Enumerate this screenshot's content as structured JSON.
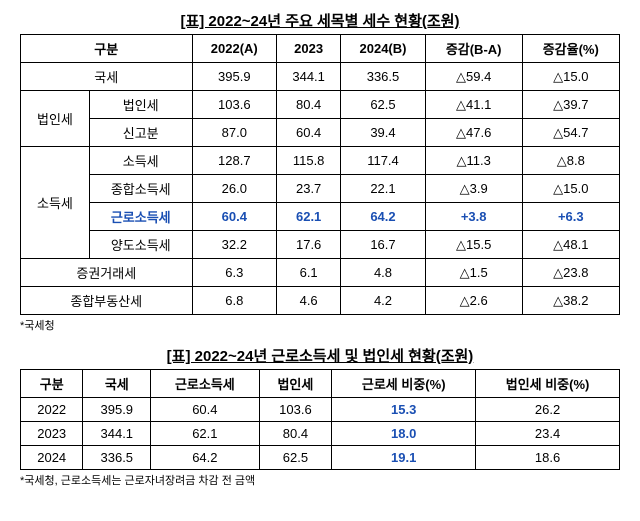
{
  "table1": {
    "title": "[표] 2022~24년 주요 세목별 세수 현황(조원)",
    "headers": {
      "category": "구분",
      "y2022": "2022(A)",
      "y2023": "2023",
      "y2024": "2024(B)",
      "diff": "증감(B-A)",
      "rate": "증감율(%)"
    },
    "rows": {
      "national_tax": {
        "label": "국세",
        "y2022": "395.9",
        "y2023": "344.1",
        "y2024": "336.5",
        "diff": "△59.4",
        "rate": "△15.0"
      },
      "corp_group": "법인세",
      "corp_tax": {
        "label": "법인세",
        "y2022": "103.6",
        "y2023": "80.4",
        "y2024": "62.5",
        "diff": "△41.1",
        "rate": "△39.7"
      },
      "corp_report": {
        "label": "신고분",
        "y2022": "87.0",
        "y2023": "60.4",
        "y2024": "39.4",
        "diff": "△47.6",
        "rate": "△54.7"
      },
      "income_group": "소득세",
      "income_tax": {
        "label": "소득세",
        "y2022": "128.7",
        "y2023": "115.8",
        "y2024": "117.4",
        "diff": "△11.3",
        "rate": "△8.8"
      },
      "comp_income": {
        "label": "종합소득세",
        "y2022": "26.0",
        "y2023": "23.7",
        "y2024": "22.1",
        "diff": "△3.9",
        "rate": "△15.0"
      },
      "earned_income": {
        "label": "근로소득세",
        "y2022": "60.4",
        "y2023": "62.1",
        "y2024": "64.2",
        "diff": "+3.8",
        "rate": "+6.3"
      },
      "transfer_income": {
        "label": "양도소득세",
        "y2022": "32.2",
        "y2023": "17.6",
        "y2024": "16.7",
        "diff": "△15.5",
        "rate": "△48.1"
      },
      "securities": {
        "label": "증권거래세",
        "y2022": "6.3",
        "y2023": "6.1",
        "y2024": "4.8",
        "diff": "△1.5",
        "rate": "△23.8"
      },
      "property": {
        "label": "종합부동산세",
        "y2022": "6.8",
        "y2023": "4.6",
        "y2024": "4.2",
        "diff": "△2.6",
        "rate": "△38.2"
      }
    },
    "footnote": "*국세청"
  },
  "table2": {
    "title": "[표] 2022~24년 근로소득세 및 법인세 현황(조원)",
    "headers": {
      "category": "구분",
      "national": "국세",
      "earned": "근로소득세",
      "corp": "법인세",
      "earned_ratio": "근로세 비중(%)",
      "corp_ratio": "법인세 비중(%)"
    },
    "rows": {
      "y2022": {
        "year": "2022",
        "national": "395.9",
        "earned": "60.4",
        "corp": "103.6",
        "earned_ratio": "15.3",
        "corp_ratio": "26.2"
      },
      "y2023": {
        "year": "2023",
        "national": "344.1",
        "earned": "62.1",
        "corp": "80.4",
        "earned_ratio": "18.0",
        "corp_ratio": "23.4"
      },
      "y2024": {
        "year": "2024",
        "national": "336.5",
        "earned": "64.2",
        "corp": "62.5",
        "earned_ratio": "19.1",
        "corp_ratio": "18.6"
      }
    },
    "footnote": "*국세청, 근로소득세는 근로자녀장려금 차감 전 금액"
  }
}
